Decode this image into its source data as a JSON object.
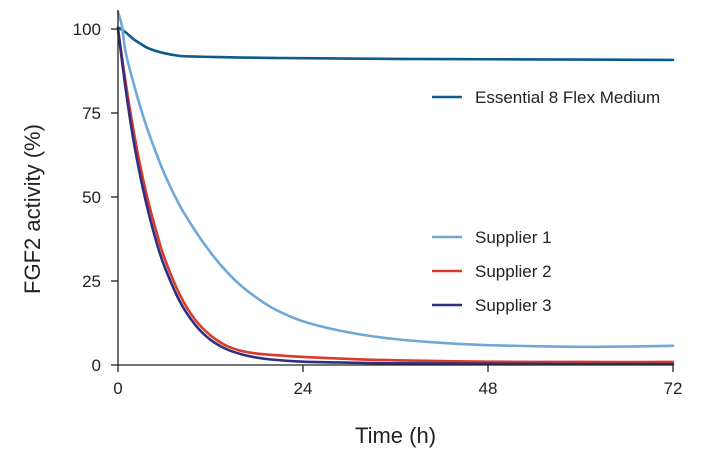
{
  "chart_data": {
    "type": "line",
    "title": "",
    "xlabel": "Time (h)",
    "ylabel": "FGF2 activity (%)",
    "xlim": [
      0,
      72
    ],
    "ylim": [
      0,
      100
    ],
    "xticks": [
      0,
      24,
      48,
      72
    ],
    "yticks": [
      0,
      25,
      50,
      75,
      100
    ],
    "grid": false,
    "series": [
      {
        "name": "Essential 8 Flex Medium",
        "color": "#0e5a8a",
        "x": [
          0,
          1,
          2,
          3,
          4,
          6,
          8,
          10,
          12,
          16,
          20,
          24,
          36,
          48,
          60,
          72
        ],
        "y": [
          100.5,
          99,
          97,
          95.5,
          94.2,
          92.8,
          92.0,
          91.8,
          91.7,
          91.5,
          91.4,
          91.3,
          91.1,
          91.0,
          90.9,
          90.8
        ]
      },
      {
        "name": "Supplier 1",
        "color": "#6ea8d8",
        "x": [
          0,
          0.5,
          1,
          2,
          3,
          4,
          6,
          8,
          10,
          12,
          14,
          16,
          18,
          20,
          22,
          24,
          28,
          32,
          36,
          40,
          44,
          48,
          54,
          60,
          66,
          72
        ],
        "y": [
          105,
          101,
          93,
          84,
          76,
          69,
          57,
          47.5,
          40,
          33.5,
          28,
          23.5,
          20,
          17,
          14.8,
          13,
          10.6,
          8.9,
          7.7,
          6.9,
          6.3,
          5.9,
          5.6,
          5.4,
          5.5,
          5.7
        ]
      },
      {
        "name": "Supplier 2",
        "color": "#d93a2b",
        "x": [
          0,
          1,
          2,
          3,
          4,
          5,
          6,
          8,
          10,
          12,
          14,
          16,
          18,
          20,
          24,
          30,
          36,
          48,
          60,
          72
        ],
        "y": [
          100,
          84,
          70,
          58,
          48,
          39.5,
          32,
          21,
          13.5,
          8.8,
          5.8,
          4.2,
          3.4,
          3.0,
          2.4,
          1.8,
          1.4,
          1.0,
          0.9,
          0.9
        ]
      },
      {
        "name": "Supplier 3",
        "color": "#2e2f80",
        "x": [
          0,
          1,
          2,
          3,
          4,
          5,
          6,
          8,
          10,
          12,
          14,
          16,
          18,
          20,
          24,
          30,
          36,
          48,
          60,
          72
        ],
        "y": [
          100,
          82,
          67,
          55,
          45,
          36.5,
          29.5,
          19,
          12,
          7.5,
          4.8,
          3.2,
          2.2,
          1.6,
          1.0,
          0.7,
          0.5,
          0.4,
          0.3,
          0.3
        ]
      }
    ],
    "legend_groups": [
      {
        "placement": "upper-right",
        "entries": [
          "Essential 8 Flex Medium"
        ]
      },
      {
        "placement": "lower-right",
        "entries": [
          "Supplier 1",
          "Supplier 2",
          "Supplier 3"
        ]
      }
    ],
    "axis_color": "#222222"
  }
}
